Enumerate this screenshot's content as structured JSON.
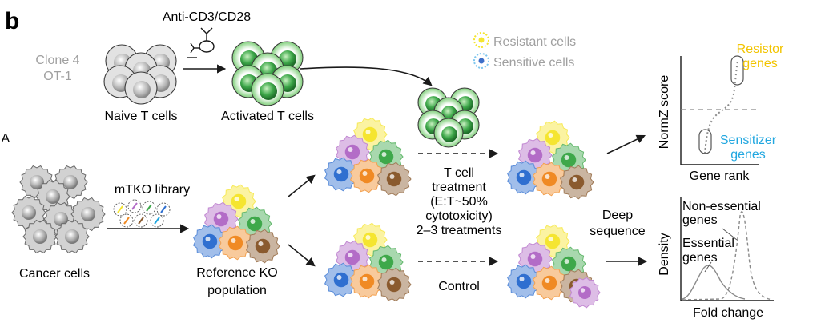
{
  "panel_label": "b",
  "labels": {
    "clone_line1": "Clone 4",
    "clone_line2": "OT-1",
    "naive_t_cells": "Naive T cells",
    "anti_cd3_cd28": "Anti-CD3/CD28",
    "activated_t_cells": "Activated T cells",
    "legend_resistant": "Resistant cells",
    "legend_sensitive": "Sensitive cells",
    "left_edge_fragment": "IA",
    "mtko_library": "mTKO library",
    "cancer_cells": "Cancer cells",
    "reference_line1": "Reference KO",
    "reference_line2": "population",
    "treatment_line1": "T cell",
    "treatment_line2": "treatment",
    "treatment_line3": "(E:T~50%",
    "treatment_line4": "cytotoxicity)",
    "treatment_line5": "2–3 treatments",
    "control": "Control",
    "deep_line1": "Deep",
    "deep_line2": "sequence"
  },
  "normz_plot": {
    "ylabel": "NormZ score",
    "xlabel": "Gene rank",
    "resistor_line1": "Resistor",
    "resistor_line2": "genes",
    "sensitizer_line1": "Sensitizer",
    "sensitizer_line2": "genes"
  },
  "density_plot": {
    "ylabel": "Density",
    "xlabel": "Fold change",
    "nonessential_line1": "Non-essential",
    "nonessential_line2": "genes",
    "essential_line1": "Essential",
    "essential_line2": "genes"
  },
  "colors": {
    "resistor_label": "#f2c400",
    "sensitizer_label": "#21a7e0",
    "legend_text": "#a0a0a0",
    "resistant_cell": "#f5e530",
    "sensitive_cell": "#7fc6ee",
    "t_cell_green": "#3ea84a",
    "naive_grey": "#9a9a9a",
    "cancer_grey": "#b8b8b8"
  },
  "ko_cell_colors": [
    "#f5e530",
    "#b36cc7",
    "#3ea84a",
    "#2f6fd0",
    "#f08a24",
    "#8a5a2e"
  ]
}
